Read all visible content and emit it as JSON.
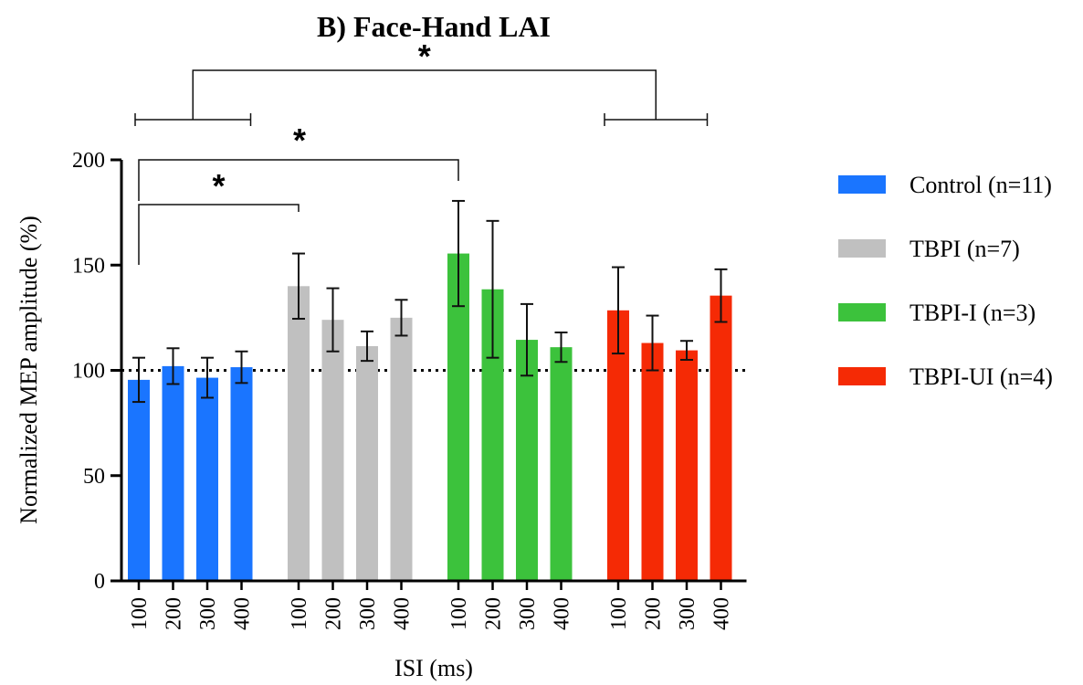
{
  "chart_data": {
    "type": "bar",
    "title": "B) Face-Hand LAI",
    "xlabel": "ISI (ms)",
    "ylabel": "Normalized MEP amplitude (%)",
    "ylim": [
      0,
      200
    ],
    "yticks": [
      0,
      50,
      100,
      150,
      200
    ],
    "reference_line": 100,
    "legend_position": "right",
    "categories": [
      "100",
      "200",
      "300",
      "400"
    ],
    "series": [
      {
        "name": "Control (n=11)",
        "color": "#1a75ff",
        "values": [
          95.5,
          102,
          96.5,
          101.5
        ],
        "errors": [
          10.5,
          8.5,
          9.5,
          7.5
        ]
      },
      {
        "name": "TBPI (n=7)",
        "color": "#c0c0c0",
        "values": [
          140,
          124,
          111.5,
          125
        ],
        "errors": [
          15.5,
          15,
          7,
          8.5
        ]
      },
      {
        "name": "TBPI-I (n=3)",
        "color": "#3cc23c",
        "values": [
          155.5,
          138.5,
          114.5,
          111
        ],
        "errors": [
          25,
          32.5,
          17,
          7
        ]
      },
      {
        "name": "TBPI-UI (n=4)",
        "color": "#f52a05",
        "values": [
          128.5,
          113,
          109.5,
          135.5
        ],
        "errors": [
          20.5,
          13,
          4.5,
          12.5
        ]
      }
    ],
    "annotations": [
      {
        "label": "*",
        "between": [
          "Control (n=11) 100",
          "TBPI (n=7) 100"
        ]
      },
      {
        "label": "*",
        "between": [
          "Control (n=11) 100",
          "TBPI-I (n=3) 100"
        ]
      },
      {
        "label": "*",
        "between": [
          "Control (n=11)",
          "TBPI-UI (n=4)"
        ]
      }
    ]
  }
}
